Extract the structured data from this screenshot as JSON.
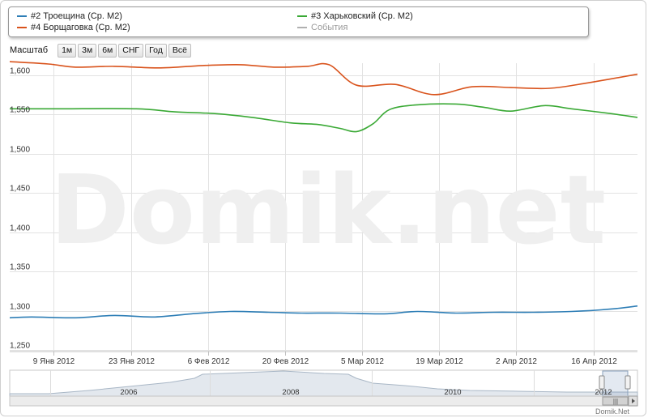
{
  "legend": {
    "items": [
      {
        "label": "#2 Троещина (Ср. М2)",
        "color": "#2e7eb6"
      },
      {
        "label": "#3 Харьковский (Ср. М2)",
        "color": "#3aa935"
      },
      {
        "label": "#4 Борщаговка (Ср. М2)",
        "color": "#d9531c"
      },
      {
        "label": "События",
        "color": "#9a9a9a"
      }
    ]
  },
  "zoom": {
    "label": "Масштаб",
    "buttons": [
      "1м",
      "3м",
      "6м",
      "СНГ",
      "Год",
      "Всё"
    ]
  },
  "watermark": "Domik.net",
  "credit": "Domik.Net",
  "navigator": {
    "year_labels": [
      "2006",
      "2008",
      "2010",
      "2012"
    ],
    "scroll_grip": "|||"
  },
  "chart_data": {
    "type": "line",
    "x_tick_labels": [
      "9 Янв 2012",
      "23 Янв 2012",
      "6 Фев 2012",
      "20 Фев 2012",
      "5 Мар 2012",
      "19 Мар 2012",
      "2 Апр 2012",
      "16 Апр 2012"
    ],
    "y_ticks": [
      1250,
      1300,
      1350,
      1400,
      1450,
      1500,
      1550,
      1600
    ],
    "y_tick_labels": [
      "1,250",
      "1,300",
      "1,350",
      "1,400",
      "1,450",
      "1,500",
      "1,550",
      "1,600"
    ],
    "ylim": [
      1248,
      1615
    ],
    "xlim": [
      "2012-01-01",
      "2012-04-24"
    ],
    "grid": true,
    "legend_position": "top",
    "series": [
      {
        "name": "#2 Троещина (Ср. М2)",
        "color": "#2e7eb6",
        "points": [
          [
            "2012-01-01",
            1291
          ],
          [
            "2012-01-05",
            1292
          ],
          [
            "2012-01-13",
            1291
          ],
          [
            "2012-01-20",
            1294
          ],
          [
            "2012-01-27",
            1292
          ],
          [
            "2012-02-03",
            1296
          ],
          [
            "2012-02-10",
            1299
          ],
          [
            "2012-02-17",
            1298
          ],
          [
            "2012-02-23",
            1297
          ],
          [
            "2012-03-01",
            1297
          ],
          [
            "2012-03-09",
            1296
          ],
          [
            "2012-03-15",
            1299
          ],
          [
            "2012-03-22",
            1297
          ],
          [
            "2012-03-29",
            1298
          ],
          [
            "2012-04-05",
            1298
          ],
          [
            "2012-04-12",
            1299
          ],
          [
            "2012-04-19",
            1302
          ],
          [
            "2012-04-24",
            1306
          ]
        ]
      },
      {
        "name": "#3 Харьковский (Ср. М2)",
        "color": "#3aa935",
        "points": [
          [
            "2012-01-01",
            1557
          ],
          [
            "2012-01-10",
            1557
          ],
          [
            "2012-01-24",
            1557
          ],
          [
            "2012-01-31",
            1553
          ],
          [
            "2012-02-07",
            1551
          ],
          [
            "2012-02-14",
            1546
          ],
          [
            "2012-02-21",
            1539
          ],
          [
            "2012-02-26",
            1537
          ],
          [
            "2012-03-01",
            1532
          ],
          [
            "2012-03-04",
            1528
          ],
          [
            "2012-03-07",
            1538
          ],
          [
            "2012-03-10",
            1556
          ],
          [
            "2012-03-15",
            1562
          ],
          [
            "2012-03-22",
            1563
          ],
          [
            "2012-03-27",
            1559
          ],
          [
            "2012-04-01",
            1554
          ],
          [
            "2012-04-07",
            1561
          ],
          [
            "2012-04-12",
            1557
          ],
          [
            "2012-04-19",
            1551
          ],
          [
            "2012-04-24",
            1546
          ]
        ]
      },
      {
        "name": "#4 Борщаговка (Ср. М2)",
        "color": "#d9531c",
        "points": [
          [
            "2012-01-01",
            1617
          ],
          [
            "2012-01-08",
            1614
          ],
          [
            "2012-01-13",
            1610
          ],
          [
            "2012-01-20",
            1611
          ],
          [
            "2012-01-28",
            1609
          ],
          [
            "2012-02-05",
            1612
          ],
          [
            "2012-02-12",
            1613
          ],
          [
            "2012-02-18",
            1610
          ],
          [
            "2012-02-24",
            1611
          ],
          [
            "2012-02-28",
            1613
          ],
          [
            "2012-03-04",
            1587
          ],
          [
            "2012-03-11",
            1588
          ],
          [
            "2012-03-18",
            1575
          ],
          [
            "2012-03-25",
            1585
          ],
          [
            "2012-04-01",
            1584
          ],
          [
            "2012-04-08",
            1583
          ],
          [
            "2012-04-15",
            1590
          ],
          [
            "2012-04-24",
            1601
          ]
        ]
      }
    ]
  }
}
